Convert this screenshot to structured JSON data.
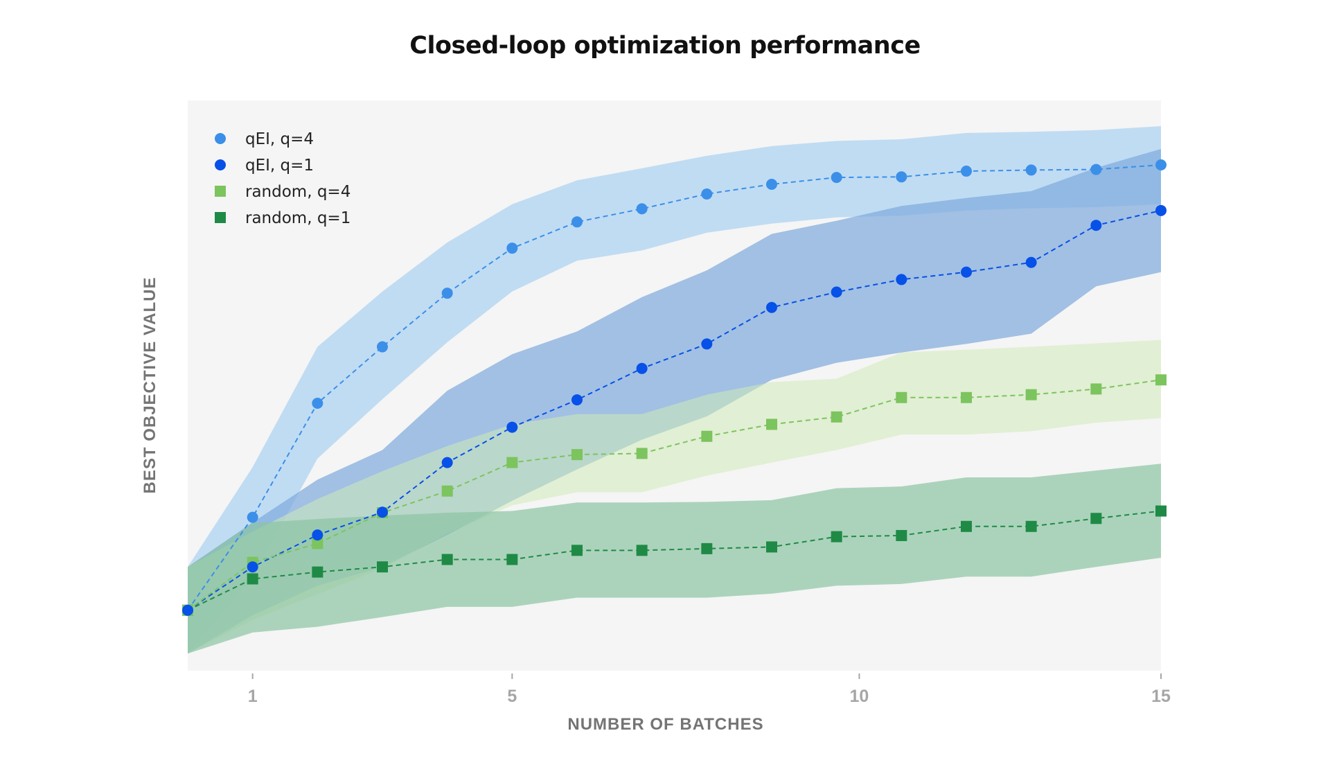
{
  "chart_data": {
    "type": "line",
    "title": "Closed-loop optimization performance",
    "xlabel": "NUMBER OF BATCHES",
    "ylabel": "BEST OBJECTIVE VALUE",
    "x": [
      0,
      1,
      2,
      3,
      4,
      5,
      6,
      7,
      8,
      9,
      10,
      11,
      12,
      13,
      14,
      15
    ],
    "xlim": [
      0,
      15
    ],
    "ylim": [
      0,
      100
    ],
    "y_units": "relative (no y tick labels shown)",
    "x_ticks": [
      {
        "value": 1,
        "label": "1"
      },
      {
        "value": 5,
        "label": "5"
      },
      {
        "value": 10.35,
        "label": "10"
      },
      {
        "value": 15,
        "label": "15"
      }
    ],
    "grid": false,
    "legend_position": "top-left",
    "series": [
      {
        "name": "qEI, q=4",
        "marker": "circle",
        "color": "#3b8fe8",
        "band_color": "#a9d2f2",
        "values": [
          10.6,
          26.9,
          46.9,
          56.8,
          66.2,
          74.1,
          78.7,
          81.0,
          83.6,
          85.3,
          86.5,
          86.6,
          87.6,
          87.8,
          87.9,
          88.7
        ],
        "upper": [
          18.2,
          35.7,
          56.8,
          66.5,
          75.1,
          81.8,
          86.0,
          88.1,
          90.3,
          92.0,
          92.9,
          93.2,
          94.3,
          94.5,
          94.8,
          95.5
        ],
        "lower": [
          3.0,
          16.4,
          37.2,
          47.6,
          57.6,
          66.5,
          71.9,
          73.7,
          76.8,
          78.4,
          79.5,
          79.8,
          80.7,
          81.1,
          81.3,
          81.8
        ]
      },
      {
        "name": "qEI, q=1",
        "marker": "circle",
        "color": "#0750e8",
        "band_color": "#7ea9dc",
        "values": [
          10.6,
          18.2,
          23.8,
          27.8,
          36.5,
          42.7,
          47.5,
          53.0,
          57.3,
          63.7,
          66.4,
          68.6,
          69.9,
          71.6,
          78.1,
          80.7
        ],
        "upper": [
          18.2,
          26.0,
          33.5,
          38.7,
          49.1,
          55.5,
          59.5,
          65.5,
          70.2,
          76.6,
          78.9,
          81.5,
          82.9,
          84.1,
          88.2,
          91.5
        ],
        "lower": [
          3.0,
          9.7,
          14.9,
          18.2,
          23.8,
          29.8,
          35.3,
          40.5,
          44.6,
          51.0,
          54.0,
          55.8,
          57.3,
          59.1,
          67.4,
          69.9
        ]
      },
      {
        "name": "random, q=4",
        "marker": "square",
        "color": "#7cc45e",
        "band_color": "#cfe9b8",
        "values": [
          10.6,
          19.0,
          22.3,
          27.7,
          31.5,
          36.5,
          37.9,
          38.1,
          41.1,
          43.2,
          44.5,
          47.9,
          47.9,
          48.4,
          49.4,
          51.0
        ],
        "upper": [
          18.2,
          24.4,
          30.1,
          35.0,
          39.4,
          43.2,
          45.0,
          45.0,
          48.4,
          50.6,
          51.2,
          55.8,
          56.3,
          56.8,
          57.4,
          58.0
        ],
        "lower": [
          3.0,
          8.9,
          13.4,
          17.9,
          24.1,
          29.0,
          31.3,
          31.3,
          34.2,
          36.5,
          38.7,
          41.4,
          41.4,
          42.0,
          43.5,
          44.3
        ]
      },
      {
        "name": "random, q=1",
        "marker": "square",
        "color": "#1f8a45",
        "band_color": "#8cc4a2",
        "values": [
          10.6,
          16.1,
          17.3,
          18.2,
          19.5,
          19.5,
          21.1,
          21.1,
          21.4,
          21.7,
          23.5,
          23.7,
          25.3,
          25.3,
          26.7,
          28.0
        ],
        "upper": [
          18.2,
          25.9,
          26.6,
          27.2,
          27.7,
          28.0,
          29.5,
          29.5,
          29.6,
          29.9,
          32.0,
          32.3,
          33.9,
          33.9,
          35.1,
          36.3
        ],
        "lower": [
          3.0,
          6.7,
          7.7,
          9.4,
          11.2,
          11.2,
          12.8,
          12.8,
          12.8,
          13.5,
          14.9,
          15.2,
          16.5,
          16.5,
          18.2,
          19.8
        ]
      }
    ]
  },
  "colors": {
    "plot_background": "#f5f5f5",
    "page_background": "#ffffff",
    "title": "#111111",
    "tick_label": "#a6a6a6",
    "axis_label": "#747474"
  }
}
